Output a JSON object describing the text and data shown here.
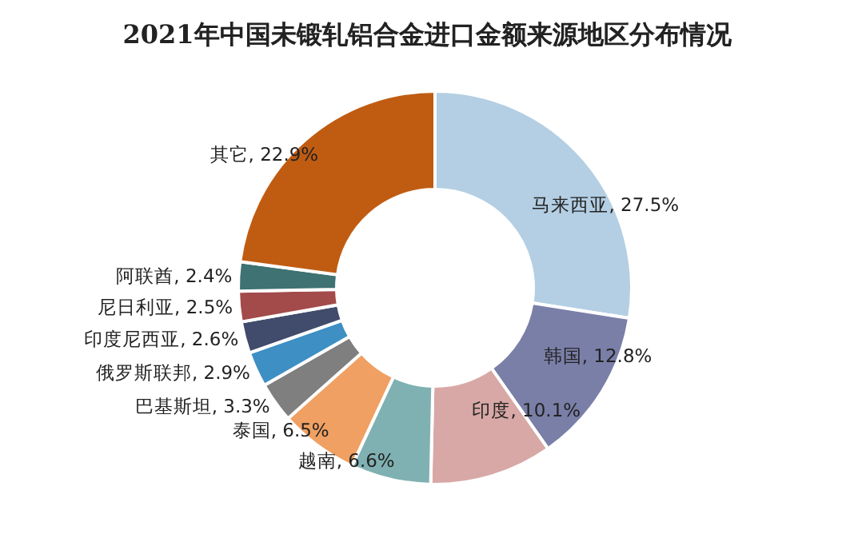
{
  "chart_data": {
    "type": "donut",
    "title": "2021年中国未锻轧铝合金进口金额来源地区分布情况",
    "categories": [
      "马来西亚",
      "韩国",
      "印度",
      "越南",
      "泰国",
      "巴基斯坦",
      "俄罗斯联邦",
      "印度尼西亚",
      "尼日利亚",
      "阿联酋",
      "其它"
    ],
    "values": [
      27.5,
      12.8,
      10.1,
      6.6,
      6.5,
      3.3,
      2.9,
      2.6,
      2.5,
      2.4,
      22.9
    ],
    "colors": [
      "#b4cfe3",
      "#7a7fa8",
      "#d8a8a6",
      "#80b1b2",
      "#f0a062",
      "#7f7f7f",
      "#3d8fc4",
      "#414b6b",
      "#a34a4a",
      "#3f7272",
      "#c05c12"
    ],
    "value_labels": [
      "27.5%",
      "12.8%",
      "10.1%",
      "6.6%",
      "6.5%",
      "3.3%",
      "2.9%",
      "2.6%",
      "2.5%",
      "2.4%",
      "22.9%"
    ]
  }
}
